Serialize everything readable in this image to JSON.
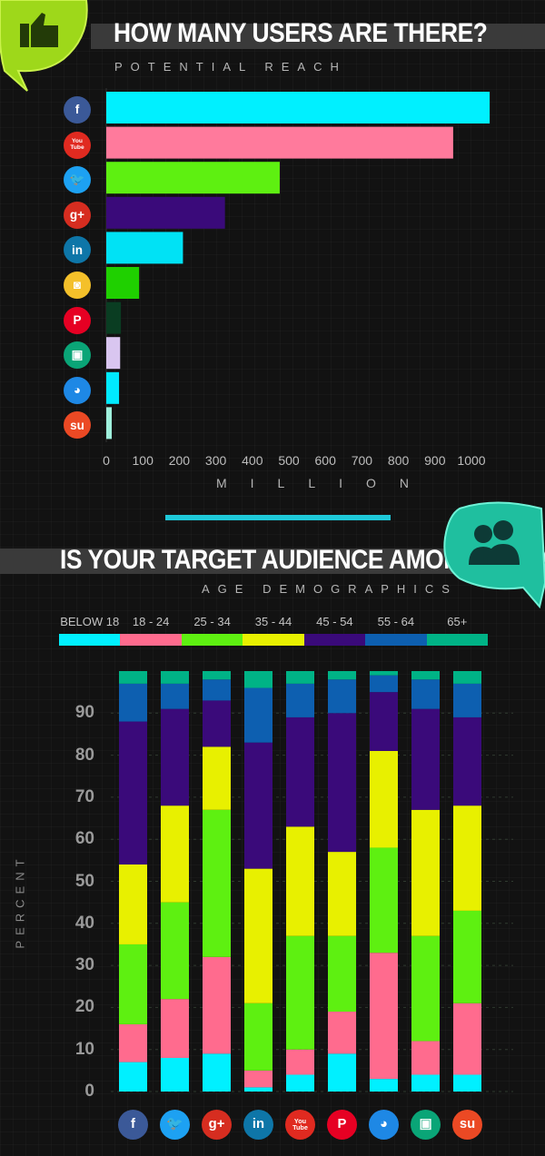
{
  "colors": {
    "cyan": "#00f0ff",
    "pink": "#ff6b8e",
    "green": "#5ef011",
    "purple": "#3a0a7a",
    "yellow": "#e8f000",
    "blue": "#0d5fb0",
    "teal": "#00b386"
  },
  "chart_data": [
    {
      "type": "bar",
      "orientation": "horizontal",
      "title": "HOW MANY USERS ARE THERE?",
      "subtitle": "POTENTIAL REACH",
      "xlabel": "MILLION",
      "xlim": [
        0,
        1000
      ],
      "xticks": [
        "0",
        "100",
        "200",
        "300",
        "400",
        "500",
        "600",
        "700",
        "800",
        "900",
        "1000"
      ],
      "categories": [
        "facebook",
        "youtube",
        "twitter",
        "google-plus",
        "linkedin",
        "instagram",
        "pinterest",
        "slideshare",
        "reddit",
        "stumbleupon"
      ],
      "values": [
        1050,
        950,
        475,
        325,
        210,
        90,
        40,
        38,
        35,
        15
      ],
      "bar_colors": [
        "#00f0ff",
        "#ff7a9c",
        "#5ef011",
        "#3a0a7a",
        "#00e2f5",
        "#1fd000",
        "#0a3d22",
        "#d9c6f0",
        "#00eaff",
        "#9ff0dc"
      ]
    },
    {
      "type": "bar",
      "stacked": true,
      "title": "IS YOUR TARGET AUDIENCE AMONG THEM?",
      "subtitle": "AGE DEMOGRAPHICS",
      "ylabel": "PERCENT",
      "ylim": [
        0,
        100
      ],
      "yticks": [
        "0",
        "10",
        "20",
        "30",
        "40",
        "50",
        "60",
        "70",
        "80",
        "90"
      ],
      "categories": [
        "facebook",
        "twitter",
        "google-plus",
        "linkedin",
        "youtube",
        "pinterest",
        "reddit",
        "slideshare",
        "stumbleupon"
      ],
      "series": [
        {
          "name": "BELOW 18",
          "color": "#00f0ff",
          "values": [
            7,
            8,
            9,
            1,
            4,
            9,
            3,
            4,
            4
          ]
        },
        {
          "name": "18 - 24",
          "color": "#ff6b8e",
          "values": [
            9,
            14,
            23,
            4,
            6,
            10,
            30,
            8,
            17
          ]
        },
        {
          "name": "25 - 34",
          "color": "#5ef011",
          "values": [
            19,
            23,
            35,
            16,
            27,
            18,
            25,
            25,
            22
          ]
        },
        {
          "name": "35 - 44",
          "color": "#e8f000",
          "values": [
            19,
            23,
            15,
            32,
            26,
            20,
            23,
            30,
            25
          ]
        },
        {
          "name": "45 - 54",
          "color": "#3a0a7a",
          "values": [
            34,
            23,
            11,
            30,
            26,
            33,
            14,
            24,
            21
          ]
        },
        {
          "name": "55 - 64",
          "color": "#0d5fb0",
          "values": [
            9,
            6,
            5,
            13,
            8,
            8,
            4,
            7,
            8
          ]
        },
        {
          "name": "65+",
          "color": "#00b386",
          "values": [
            3,
            3,
            2,
            4,
            3,
            2,
            1,
            2,
            3
          ]
        }
      ]
    }
  ],
  "platform_icons": {
    "facebook": {
      "glyph": "f",
      "color": "#3b5998"
    },
    "youtube": {
      "glyph": "You\nTube",
      "color": "#e02a20"
    },
    "twitter": {
      "glyph": "🐦",
      "color": "#1da1f2"
    },
    "google-plus": {
      "glyph": "g+",
      "color": "#d62d20"
    },
    "linkedin": {
      "glyph": "in",
      "color": "#0e76a8"
    },
    "instagram": {
      "glyph": "◙",
      "color": "#f4c02a"
    },
    "pinterest": {
      "glyph": "P",
      "color": "#e60023"
    },
    "slideshare": {
      "glyph": "▣",
      "color": "#0aa577"
    },
    "reddit": {
      "glyph": "◕",
      "color": "#1e88e5"
    },
    "stumbleupon": {
      "glyph": "su",
      "color": "#eb4924"
    }
  }
}
